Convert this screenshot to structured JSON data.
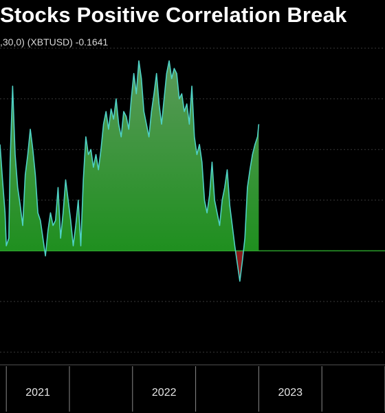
{
  "chart_data": {
    "type": "area",
    "title": "Stocks Positive Correlation Break",
    "legend_text": ",30,0) (XBTUSD) -0.1641",
    "series_color": "#4fd1c5",
    "positive_fill": "#1f8f1f",
    "negative_fill": "#8b1a1a",
    "baseline": 0,
    "ylim": [
      -0.45,
      0.8
    ],
    "xlim": [
      2020.45,
      2023.5
    ],
    "x_ticks": [
      2020.5,
      2021.0,
      2021.5,
      2022.0,
      2022.5,
      2023.0,
      2023.5
    ],
    "x_tick_labels": [
      {
        "x": 2020.75,
        "label": "2021"
      },
      {
        "x": 2021.75,
        "label": "2022"
      },
      {
        "x": 2022.75,
        "label": "2023"
      }
    ],
    "grid": true,
    "x": [
      2020.45,
      2020.47,
      2020.49,
      2020.5,
      2020.52,
      2020.53,
      2020.55,
      2020.57,
      2020.59,
      2020.61,
      2020.63,
      2020.65,
      2020.67,
      2020.69,
      2020.71,
      2020.73,
      2020.75,
      2020.77,
      2020.79,
      2020.81,
      2020.83,
      2020.85,
      2020.87,
      2020.89,
      2020.91,
      2020.93,
      2020.95,
      2020.97,
      2020.99,
      2021.01,
      2021.03,
      2021.05,
      2021.07,
      2021.09,
      2021.11,
      2021.13,
      2021.15,
      2021.17,
      2021.19,
      2021.21,
      2021.23,
      2021.25,
      2021.27,
      2021.29,
      2021.31,
      2021.33,
      2021.35,
      2021.37,
      2021.39,
      2021.41,
      2021.43,
      2021.45,
      2021.47,
      2021.49,
      2021.51,
      2021.53,
      2021.55,
      2021.57,
      2021.59,
      2021.61,
      2021.63,
      2021.65,
      2021.67,
      2021.69,
      2021.71,
      2021.73,
      2021.75,
      2021.77,
      2021.79,
      2021.81,
      2021.83,
      2021.85,
      2021.87,
      2021.89,
      2021.91,
      2021.93,
      2021.95,
      2021.97,
      2021.99,
      2022.01,
      2022.03,
      2022.05,
      2022.07,
      2022.09,
      2022.11,
      2022.13,
      2022.15,
      2022.17,
      2022.19,
      2022.21,
      2022.23,
      2022.25,
      2022.27,
      2022.29,
      2022.31,
      2022.33,
      2022.35,
      2022.37,
      2022.39,
      2022.41,
      2022.43,
      2022.45,
      2022.47,
      2022.49,
      2022.5
    ],
    "y": [
      0.42,
      0.28,
      0.15,
      0.02,
      0.05,
      0.35,
      0.65,
      0.38,
      0.25,
      0.18,
      0.1,
      0.3,
      0.38,
      0.48,
      0.4,
      0.3,
      0.15,
      0.12,
      0.05,
      -0.02,
      0.08,
      0.15,
      0.1,
      0.12,
      0.25,
      0.05,
      0.15,
      0.28,
      0.2,
      0.12,
      0.02,
      0.1,
      0.2,
      0.02,
      0.28,
      0.45,
      0.38,
      0.4,
      0.33,
      0.38,
      0.32,
      0.4,
      0.5,
      0.55,
      0.48,
      0.56,
      0.52,
      0.6,
      0.5,
      0.45,
      0.55,
      0.53,
      0.48,
      0.6,
      0.7,
      0.62,
      0.75,
      0.68,
      0.55,
      0.5,
      0.45,
      0.55,
      0.62,
      0.7,
      0.58,
      0.5,
      0.6,
      0.7,
      0.75,
      0.68,
      0.72,
      0.7,
      0.6,
      0.62,
      0.55,
      0.58,
      0.5,
      0.65,
      0.45,
      0.38,
      0.42,
      0.35,
      0.2,
      0.15,
      0.22,
      0.35,
      0.2,
      0.15,
      0.1,
      0.2,
      0.25,
      0.32,
      0.18,
      0.1,
      0.02,
      -0.05,
      -0.12,
      -0.04,
      0.05,
      0.25,
      0.32,
      0.38,
      0.42,
      0.45,
      0.5
    ]
  }
}
